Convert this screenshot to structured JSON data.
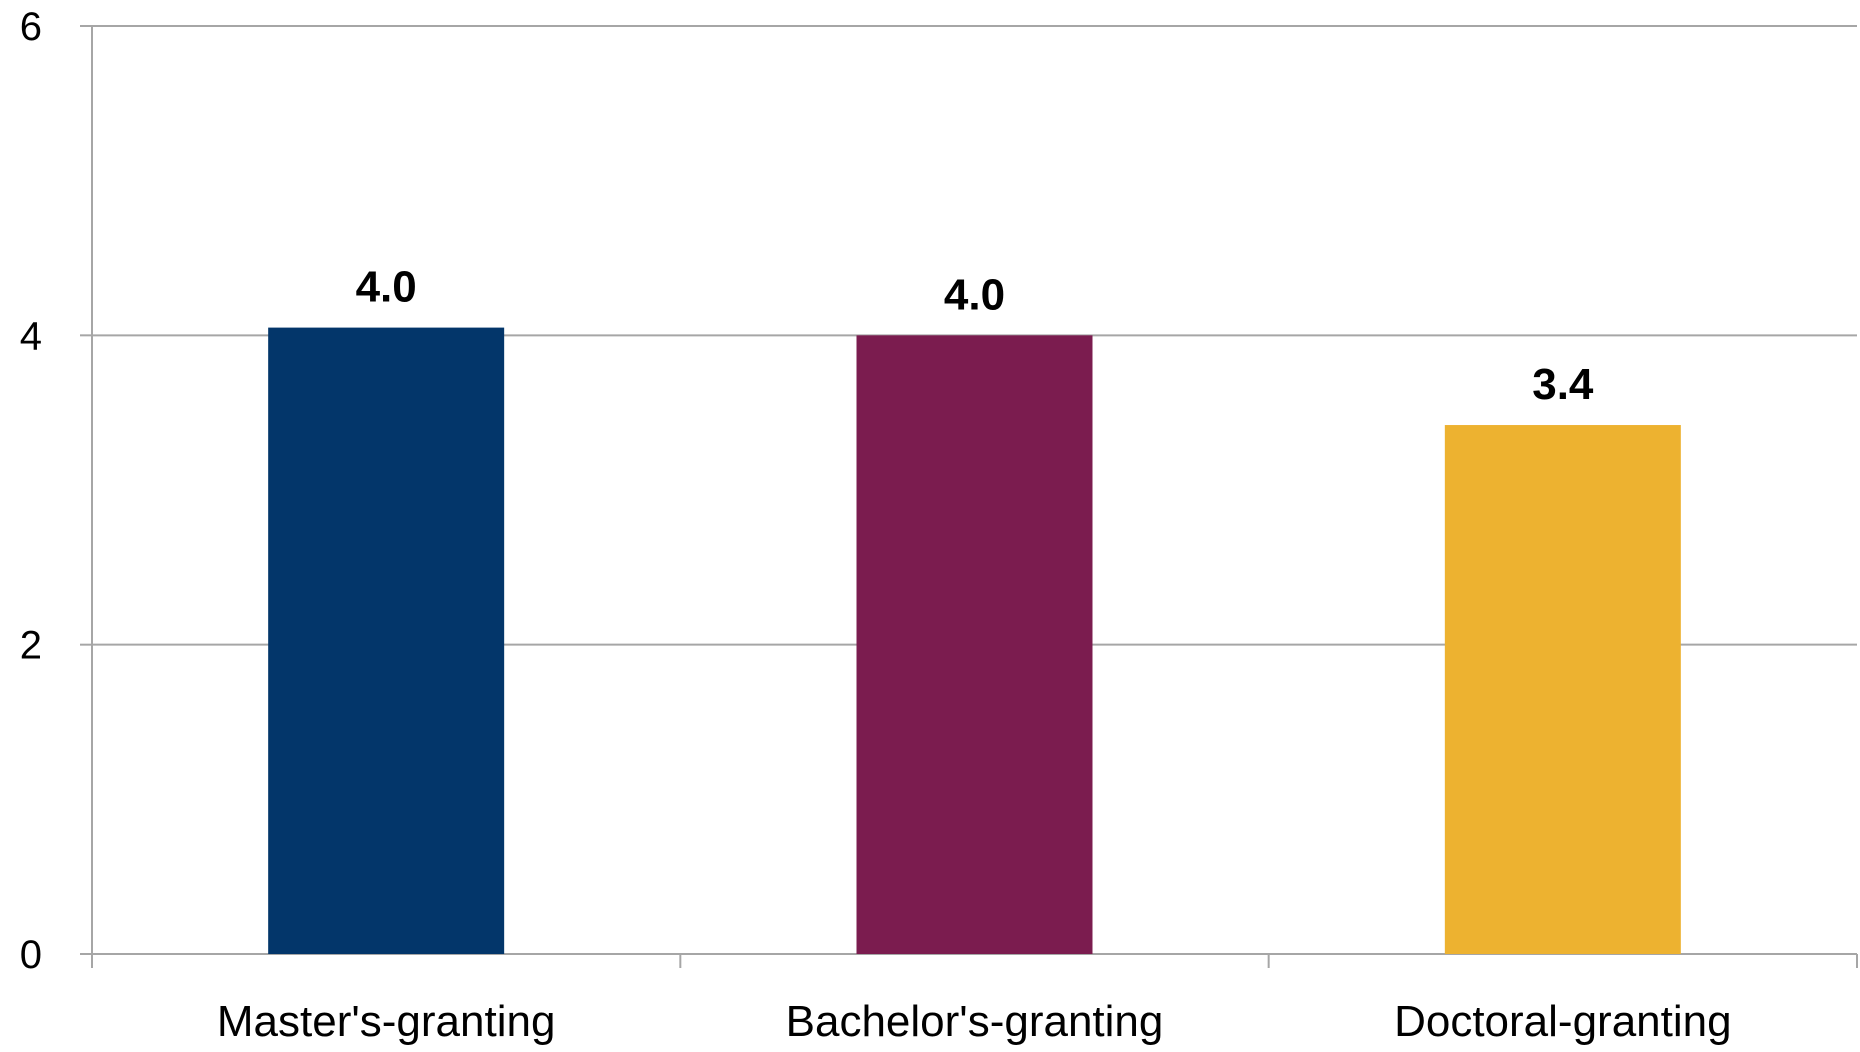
{
  "chart_data": {
    "type": "bar",
    "title": "",
    "xlabel": "",
    "ylabel": "",
    "categories": [
      "Master's-granting",
      "Bachelor's-granting",
      "Doctoral-granting"
    ],
    "values": [
      4.05,
      4.0,
      3.42
    ],
    "data_labels": [
      "4.0",
      "4.0",
      "3.4"
    ],
    "colors": [
      "#03366a",
      "#7b1c4f",
      "#edb230"
    ],
    "ylim": [
      0,
      6
    ],
    "yticks": [
      0,
      2,
      4,
      6
    ],
    "ytick_labels": [
      "0",
      "2",
      "4",
      "6"
    ],
    "grid": true,
    "legend": "none"
  },
  "style": {
    "grid_color": "#a6a6a6",
    "axis_color": "#a6a6a6"
  }
}
